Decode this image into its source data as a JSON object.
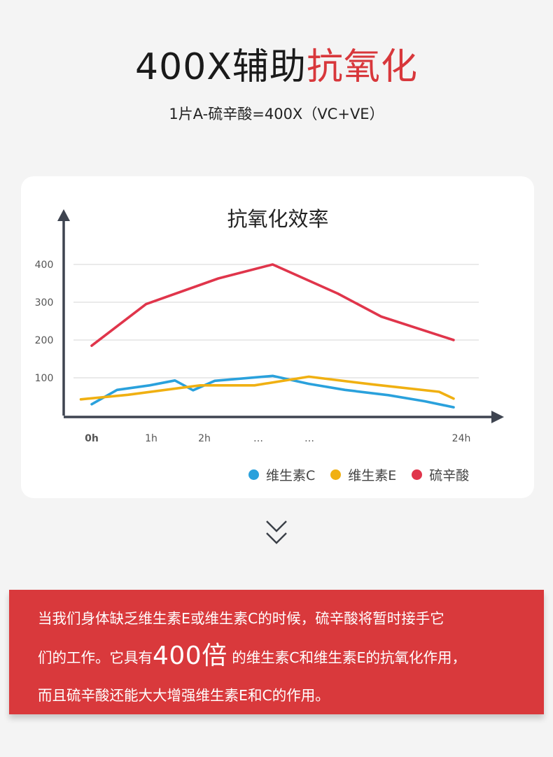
{
  "header": {
    "title_prefix": "400X辅助",
    "title_accent": "抗氧化",
    "subtitle": "1片A-硫辛酸=400X（VC+VE）"
  },
  "colors": {
    "accent_red": "#d8373b",
    "series_vc": "#2aa1dc",
    "series_ve": "#f0b012",
    "series_ala": "#e0354b",
    "banner_bg": "#d9393c"
  },
  "chart_data": {
    "type": "line",
    "title": "抗氧化效率",
    "x_tick_labels": [
      "0h",
      "1h",
      "2h",
      "…",
      "…",
      "24h"
    ],
    "y_ticks": [
      100,
      200,
      300,
      400
    ],
    "ylim": [
      0,
      420
    ],
    "grid": true,
    "legend_position": "bottom-right",
    "x_range": [
      0,
      1
    ],
    "series": [
      {
        "name": "维生素C",
        "color": "#2aa1dc",
        "points": [
          [
            0.0,
            30
          ],
          [
            0.07,
            68
          ],
          [
            0.16,
            80
          ],
          [
            0.23,
            93
          ],
          [
            0.28,
            67
          ],
          [
            0.34,
            92
          ],
          [
            0.5,
            105
          ],
          [
            0.6,
            84
          ],
          [
            0.7,
            68
          ],
          [
            0.82,
            54
          ],
          [
            0.92,
            38
          ],
          [
            1.0,
            22
          ]
        ]
      },
      {
        "name": "维生素E",
        "color": "#f0b012",
        "points": [
          [
            -0.03,
            43
          ],
          [
            0.1,
            55
          ],
          [
            0.3,
            80
          ],
          [
            0.45,
            80
          ],
          [
            0.6,
            103
          ],
          [
            0.78,
            82
          ],
          [
            0.96,
            63
          ],
          [
            1.0,
            45
          ]
        ]
      },
      {
        "name": "硫辛酸",
        "color": "#e0354b",
        "points": [
          [
            0.0,
            185
          ],
          [
            0.15,
            295
          ],
          [
            0.35,
            363
          ],
          [
            0.5,
            400
          ],
          [
            0.68,
            323
          ],
          [
            0.8,
            262
          ],
          [
            1.0,
            200
          ]
        ]
      }
    ]
  },
  "banner": {
    "line1": "当我们身体缺乏维生素E或维生素C的时候，硫辛酸将暂时接手它",
    "line2_pre": "们的工作。它具有",
    "line2_big": "400倍",
    "line2_post": " 的维生素C和维生素E的抗氧化作用，",
    "line3": "而且硫辛酸还能大大增强维生素E和C的作用。"
  }
}
